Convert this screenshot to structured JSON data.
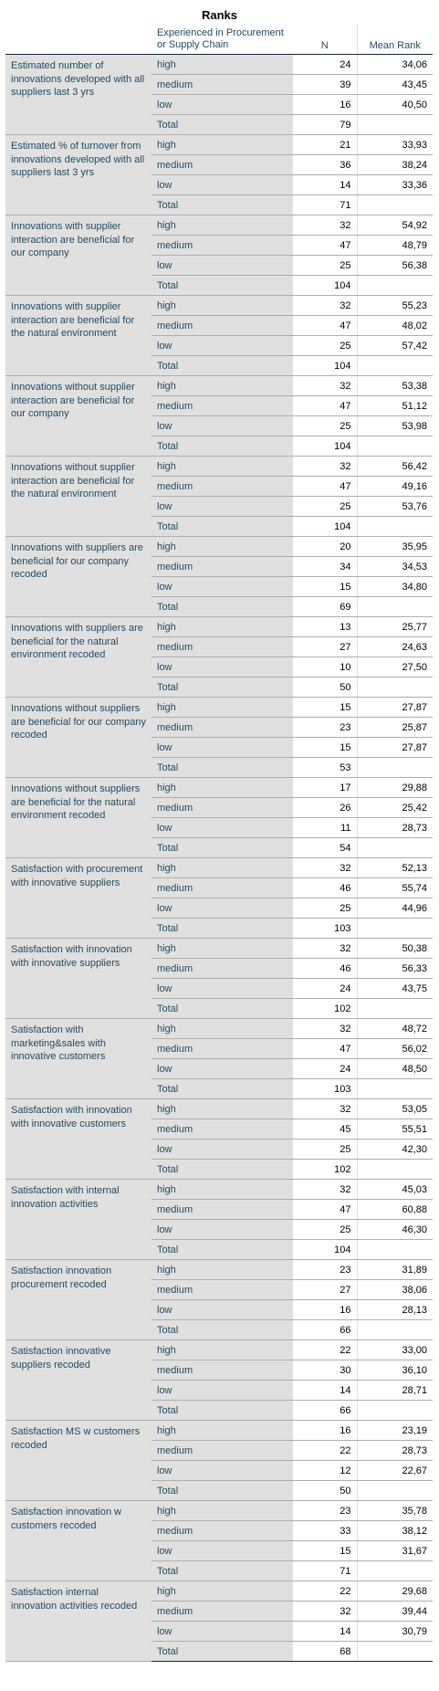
{
  "title": "Ranks",
  "headers": {
    "group": "Experienced in Procurement or Supply Chain",
    "n": "N",
    "mean_rank": "Mean Rank"
  },
  "variables": [
    {
      "name": "Estimated number of innovations developed with all suppliers last 3 yrs",
      "rows": [
        [
          "high",
          "24",
          "34,06"
        ],
        [
          "medium",
          "39",
          "43,45"
        ],
        [
          "low",
          "16",
          "40,50"
        ],
        [
          "Total",
          "79",
          ""
        ]
      ]
    },
    {
      "name": "Estimated % of turnover from innovations developed with all suppliers last 3 yrs",
      "rows": [
        [
          "high",
          "21",
          "33,93"
        ],
        [
          "medium",
          "36",
          "38,24"
        ],
        [
          "low",
          "14",
          "33,36"
        ],
        [
          "Total",
          "71",
          ""
        ]
      ]
    },
    {
      "name": "Innovations with supplier interaction are beneficial for our company",
      "rows": [
        [
          "high",
          "32",
          "54,92"
        ],
        [
          "medium",
          "47",
          "48,79"
        ],
        [
          "low",
          "25",
          "56,38"
        ],
        [
          "Total",
          "104",
          ""
        ]
      ]
    },
    {
      "name": "Innovations with supplier interaction are beneficial for the natural environment",
      "rows": [
        [
          "high",
          "32",
          "55,23"
        ],
        [
          "medium",
          "47",
          "48,02"
        ],
        [
          "low",
          "25",
          "57,42"
        ],
        [
          "Total",
          "104",
          ""
        ]
      ]
    },
    {
      "name": "Innovations without supplier interaction are beneficial for our company",
      "rows": [
        [
          "high",
          "32",
          "53,38"
        ],
        [
          "medium",
          "47",
          "51,12"
        ],
        [
          "low",
          "25",
          "53,98"
        ],
        [
          "Total",
          "104",
          ""
        ]
      ]
    },
    {
      "name": "Innovations without supplier interaction are beneficial for the natural environment",
      "rows": [
        [
          "high",
          "32",
          "56,42"
        ],
        [
          "medium",
          "47",
          "49,16"
        ],
        [
          "low",
          "25",
          "53,76"
        ],
        [
          "Total",
          "104",
          ""
        ]
      ]
    },
    {
      "name": "Innovations with suppliers are beneficial for our company recoded",
      "rows": [
        [
          "high",
          "20",
          "35,95"
        ],
        [
          "medium",
          "34",
          "34,53"
        ],
        [
          "low",
          "15",
          "34,80"
        ],
        [
          "Total",
          "69",
          ""
        ]
      ]
    },
    {
      "name": "Innovations with suppliers are beneficial for the natural environment recoded",
      "rows": [
        [
          "high",
          "13",
          "25,77"
        ],
        [
          "medium",
          "27",
          "24,63"
        ],
        [
          "low",
          "10",
          "27,50"
        ],
        [
          "Total",
          "50",
          ""
        ]
      ]
    },
    {
      "name": "Innovations without suppliers are beneficial for our company recoded",
      "rows": [
        [
          "high",
          "15",
          "27,87"
        ],
        [
          "medium",
          "23",
          "25,87"
        ],
        [
          "low",
          "15",
          "27,87"
        ],
        [
          "Total",
          "53",
          ""
        ]
      ]
    },
    {
      "name": "Innovations without suppliers are beneficial for the natural environment recoded",
      "rows": [
        [
          "high",
          "17",
          "29,88"
        ],
        [
          "medium",
          "26",
          "25,42"
        ],
        [
          "low",
          "11",
          "28,73"
        ],
        [
          "Total",
          "54",
          ""
        ]
      ]
    },
    {
      "name": "Satisfaction with procurement with innovative suppliers",
      "rows": [
        [
          "high",
          "32",
          "52,13"
        ],
        [
          "medium",
          "46",
          "55,74"
        ],
        [
          "low",
          "25",
          "44,96"
        ],
        [
          "Total",
          "103",
          ""
        ]
      ]
    },
    {
      "name": "Satisfaction with innovation with innovative suppliers",
      "rows": [
        [
          "high",
          "32",
          "50,38"
        ],
        [
          "medium",
          "46",
          "56,33"
        ],
        [
          "low",
          "24",
          "43,75"
        ],
        [
          "Total",
          "102",
          ""
        ]
      ]
    },
    {
      "name": "Satisfaction with marketing&sales with innovative customers",
      "rows": [
        [
          "high",
          "32",
          "48,72"
        ],
        [
          "medium",
          "47",
          "56,02"
        ],
        [
          "low",
          "24",
          "48,50"
        ],
        [
          "Total",
          "103",
          ""
        ]
      ]
    },
    {
      "name": "Satisfaction with innovation with innovative customers",
      "rows": [
        [
          "high",
          "32",
          "53,05"
        ],
        [
          "medium",
          "45",
          "55,51"
        ],
        [
          "low",
          "25",
          "42,30"
        ],
        [
          "Total",
          "102",
          ""
        ]
      ]
    },
    {
      "name": "Satisfaction with internal innovation activities",
      "rows": [
        [
          "high",
          "32",
          "45,03"
        ],
        [
          "medium",
          "47",
          "60,88"
        ],
        [
          "low",
          "25",
          "46,30"
        ],
        [
          "Total",
          "104",
          ""
        ]
      ]
    },
    {
      "name": "Satisfaction innovation procurement recoded",
      "rows": [
        [
          "high",
          "23",
          "31,89"
        ],
        [
          "medium",
          "27",
          "38,06"
        ],
        [
          "low",
          "16",
          "28,13"
        ],
        [
          "Total",
          "66",
          ""
        ]
      ]
    },
    {
      "name": "Satisfaction innovative suppliers recoded",
      "rows": [
        [
          "high",
          "22",
          "33,00"
        ],
        [
          "medium",
          "30",
          "36,10"
        ],
        [
          "low",
          "14",
          "28,71"
        ],
        [
          "Total",
          "66",
          ""
        ]
      ]
    },
    {
      "name": "Satisfaction MS w customers recoded",
      "rows": [
        [
          "high",
          "16",
          "23,19"
        ],
        [
          "medium",
          "22",
          "28,73"
        ],
        [
          "low",
          "12",
          "22,67"
        ],
        [
          "Total",
          "50",
          ""
        ]
      ]
    },
    {
      "name": "Satisfaction innovation w customers recoded",
      "rows": [
        [
          "high",
          "23",
          "35,78"
        ],
        [
          "medium",
          "33",
          "38,12"
        ],
        [
          "low",
          "15",
          "31,67"
        ],
        [
          "Total",
          "71",
          ""
        ]
      ]
    },
    {
      "name": "Satisfaction internal innovation activities recoded",
      "rows": [
        [
          "high",
          "22",
          "29,68"
        ],
        [
          "medium",
          "32",
          "39,44"
        ],
        [
          "low",
          "14",
          "30,79"
        ],
        [
          "Total",
          "68",
          ""
        ]
      ]
    }
  ]
}
